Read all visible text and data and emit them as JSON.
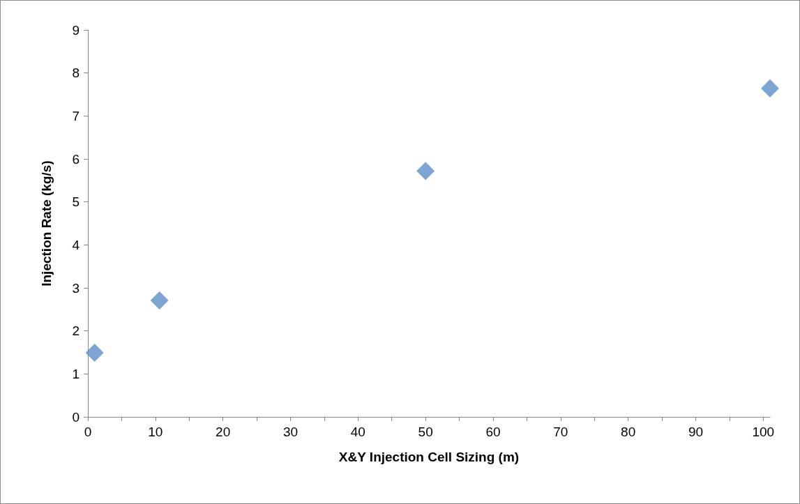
{
  "chart_data": {
    "type": "scatter",
    "xlabel": "X&Y Injection Cell Sizing (m)",
    "ylabel": "Injection Rate (kg/s)",
    "x": [
      1,
      10.6,
      50,
      101
    ],
    "series": [
      {
        "color": "#5b8fc9",
        "values": [
          1.49,
          2.71,
          5.72,
          7.64
        ]
      }
    ],
    "xlim": [
      0,
      101
    ],
    "xticks": [
      0,
      {
        "value": 5,
        "label": null
      },
      10,
      {
        "value": 15,
        "label": null
      },
      20,
      {
        "value": 25,
        "label": null
      },
      30,
      {
        "value": 35,
        "label": null
      },
      40,
      {
        "value": 45,
        "label": null
      },
      50,
      {
        "value": 55,
        "label": null
      },
      60,
      {
        "value": 65,
        "label": null
      },
      70,
      {
        "value": 75,
        "label": null
      },
      80,
      {
        "value": 85,
        "label": null
      },
      90,
      {
        "value": 95,
        "label": null
      },
      100
    ],
    "ylim": [
      0,
      9
    ],
    "yticks": [
      0,
      1,
      2,
      3,
      4,
      5,
      6,
      7,
      8,
      9
    ],
    "grid": false,
    "marker": "diamond"
  }
}
